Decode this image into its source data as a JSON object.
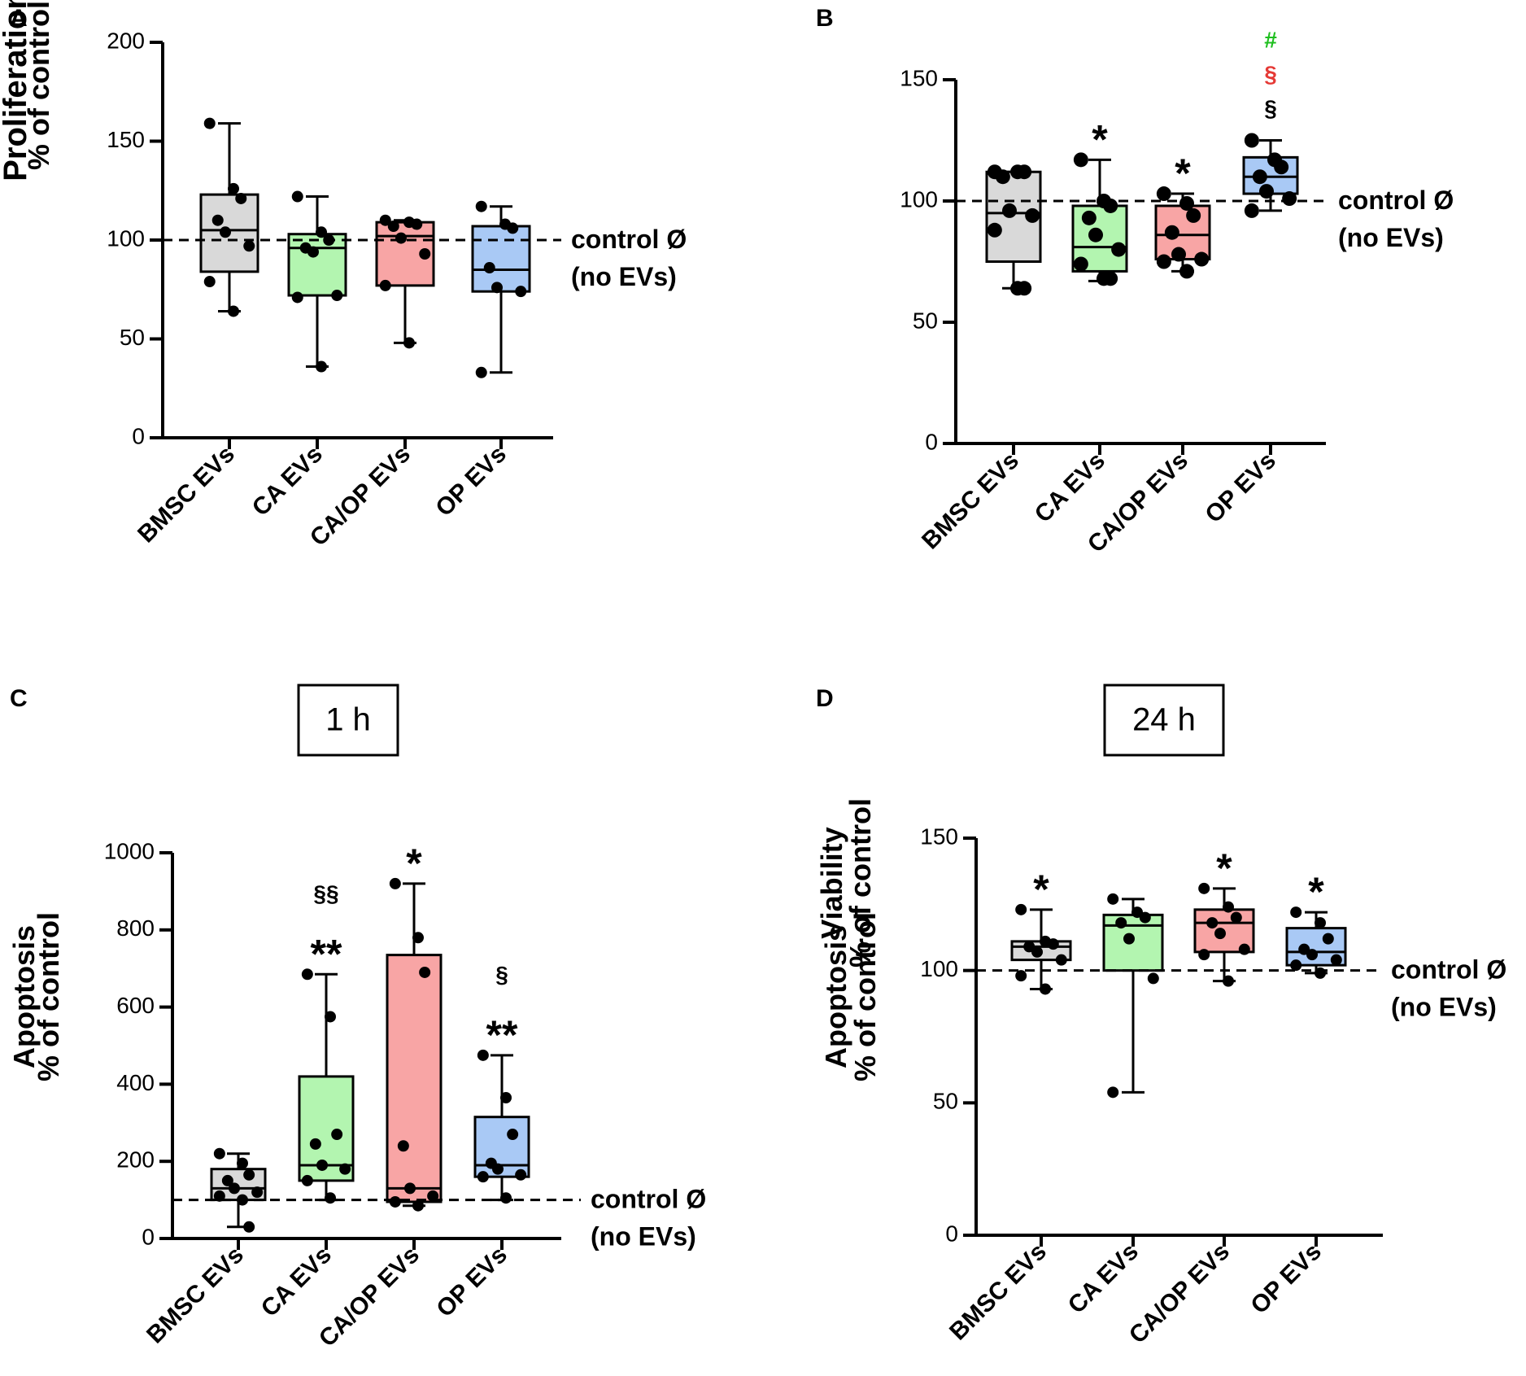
{
  "ref_line": {
    "value": 100,
    "label_line1": "control Ø",
    "label_line2": "(no EVs)"
  },
  "chart_data": [
    {
      "panel": "A",
      "type": "box",
      "ylabel_line1": "Proliferation",
      "ylabel_line2": "% of control",
      "ylim": [
        0,
        200
      ],
      "yticks": [
        0,
        50,
        100,
        150,
        200
      ],
      "ref_line": 100,
      "show_ref_label": true,
      "categories": [
        "BMSC EVs",
        "CA EVs",
        "CA/OP EVs",
        "OP EVs"
      ],
      "colors": [
        "#d9d9d9",
        "#b3f5b0",
        "#f8a5a5",
        "#a9c9f5"
      ],
      "boxes": [
        {
          "min": 64,
          "q1": 84,
          "median": 105,
          "q3": 123,
          "max": 159,
          "points": [
            159,
            126,
            121,
            110,
            104,
            97,
            79,
            64
          ]
        },
        {
          "min": 36,
          "q1": 72,
          "median": 96,
          "q3": 103,
          "max": 122,
          "points": [
            122,
            104,
            100,
            96,
            94,
            72,
            71,
            36
          ]
        },
        {
          "min": 48,
          "q1": 77,
          "median": 102,
          "q3": 109,
          "max": 110,
          "points": [
            110,
            109,
            108,
            107,
            101,
            93,
            77,
            48
          ]
        },
        {
          "min": 33,
          "q1": 74,
          "median": 85,
          "q3": 107,
          "max": 117,
          "points": [
            117,
            108,
            106,
            86,
            76,
            74,
            33
          ]
        }
      ],
      "annotations": []
    },
    {
      "panel": "B",
      "type": "box",
      "ylabel_line1": "Viability",
      "ylabel_line2": "% of control",
      "ylim": [
        0,
        150
      ],
      "yticks": [
        0,
        50,
        100,
        150
      ],
      "ref_line": 100,
      "show_ref_label": true,
      "categories": [
        "BMSC EVs",
        "CA EVs",
        "CA/OP EVs",
        "OP EVs"
      ],
      "colors": [
        "#d9d9d9",
        "#b3f5b0",
        "#f8a5a5",
        "#a9c9f5"
      ],
      "boxes": [
        {
          "min": 64,
          "q1": 75,
          "median": 95,
          "q3": 112,
          "max": 112,
          "points": [
            112,
            112,
            112,
            110,
            96,
            94,
            88,
            64,
            64
          ]
        },
        {
          "min": 67,
          "q1": 71,
          "median": 81,
          "q3": 98,
          "max": 117,
          "points": [
            117,
            100,
            98,
            93,
            86,
            80,
            74,
            68,
            68
          ]
        },
        {
          "min": 71,
          "q1": 76,
          "median": 86,
          "q3": 98,
          "max": 103,
          "points": [
            103,
            99,
            94,
            87,
            78,
            76,
            75,
            71
          ]
        },
        {
          "min": 96,
          "q1": 103,
          "median": 110,
          "q3": 118,
          "max": 125,
          "points": [
            125,
            117,
            114,
            110,
            104,
            101,
            96
          ]
        }
      ],
      "annotations": [
        {
          "category": 1,
          "lines": [
            {
              "text": "*",
              "color": "#000000"
            }
          ]
        },
        {
          "category": 2,
          "lines": [
            {
              "text": "*",
              "color": "#000000"
            }
          ]
        },
        {
          "category": 3,
          "lines": [
            {
              "text": "#",
              "color": "#1fbf1f"
            },
            {
              "text": "§",
              "color": "#e53935"
            },
            {
              "text": "§",
              "color": "#000000"
            }
          ]
        }
      ]
    },
    {
      "panel": "C",
      "type": "box",
      "time_label": "1 h",
      "ylabel_line1": "Apoptosis",
      "ylabel_line2": "% of control",
      "ylim": [
        0,
        1000
      ],
      "yticks": [
        0,
        200,
        400,
        600,
        800,
        1000
      ],
      "ref_line": 100,
      "show_ref_label": true,
      "categories": [
        "BMSC EVs",
        "CA EVs",
        "CA/OP EVs",
        "OP EVs"
      ],
      "colors": [
        "#d9d9d9",
        "#b3f5b0",
        "#f8a5a5",
        "#a9c9f5"
      ],
      "boxes": [
        {
          "min": 30,
          "q1": 100,
          "median": 130,
          "q3": 180,
          "max": 220,
          "points": [
            220,
            195,
            165,
            150,
            130,
            120,
            110,
            100,
            30
          ]
        },
        {
          "min": 100,
          "q1": 150,
          "median": 190,
          "q3": 420,
          "max": 685,
          "points": [
            685,
            575,
            270,
            245,
            190,
            180,
            150,
            105
          ]
        },
        {
          "min": 85,
          "q1": 95,
          "median": 130,
          "q3": 735,
          "max": 920,
          "points": [
            920,
            780,
            690,
            240,
            130,
            110,
            95,
            85
          ]
        },
        {
          "min": 100,
          "q1": 160,
          "median": 190,
          "q3": 315,
          "max": 475,
          "points": [
            475,
            365,
            270,
            195,
            180,
            165,
            160,
            105
          ]
        }
      ],
      "annotations": [
        {
          "category": 1,
          "lines": [
            {
              "text": "§§",
              "color": "#000000"
            },
            {
              "text": "**",
              "color": "#000000"
            }
          ]
        },
        {
          "category": 2,
          "lines": [
            {
              "text": "*",
              "color": "#000000"
            }
          ]
        },
        {
          "category": 3,
          "lines": [
            {
              "text": "§",
              "color": "#000000"
            },
            {
              "text": "**",
              "color": "#000000"
            }
          ]
        }
      ]
    },
    {
      "panel": "D",
      "type": "box",
      "time_label": "24 h",
      "ylabel_line1": "Apoptosis",
      "ylabel_line2": "% of control",
      "ylim": [
        0,
        150
      ],
      "yticks": [
        0,
        50,
        100,
        150
      ],
      "ref_line": 100,
      "show_ref_label": true,
      "categories": [
        "BMSC EVs",
        "CA EVs",
        "CA/OP EVs",
        "OP EVs"
      ],
      "colors": [
        "#d9d9d9",
        "#b3f5b0",
        "#f8a5a5",
        "#a9c9f5"
      ],
      "boxes": [
        {
          "min": 93,
          "q1": 104,
          "median": 109,
          "q3": 111,
          "max": 123,
          "points": [
            123,
            111,
            110,
            109,
            107,
            104,
            98,
            93
          ]
        },
        {
          "min": 54,
          "q1": 100,
          "median": 117,
          "q3": 121,
          "max": 127,
          "points": [
            127,
            122,
            120,
            118,
            112,
            97,
            54
          ]
        },
        {
          "min": 96,
          "q1": 107,
          "median": 118,
          "q3": 123,
          "max": 131,
          "points": [
            131,
            124,
            120,
            118,
            114,
            108,
            106,
            96
          ]
        },
        {
          "min": 99,
          "q1": 102,
          "median": 107,
          "q3": 116,
          "max": 122,
          "points": [
            122,
            118,
            112,
            108,
            106,
            104,
            102,
            99
          ]
        }
      ],
      "annotations": [
        {
          "category": 0,
          "lines": [
            {
              "text": "*",
              "color": "#000000"
            }
          ]
        },
        {
          "category": 2,
          "lines": [
            {
              "text": "*",
              "color": "#000000"
            }
          ]
        },
        {
          "category": 3,
          "lines": [
            {
              "text": "*",
              "color": "#000000"
            }
          ]
        }
      ]
    }
  ]
}
